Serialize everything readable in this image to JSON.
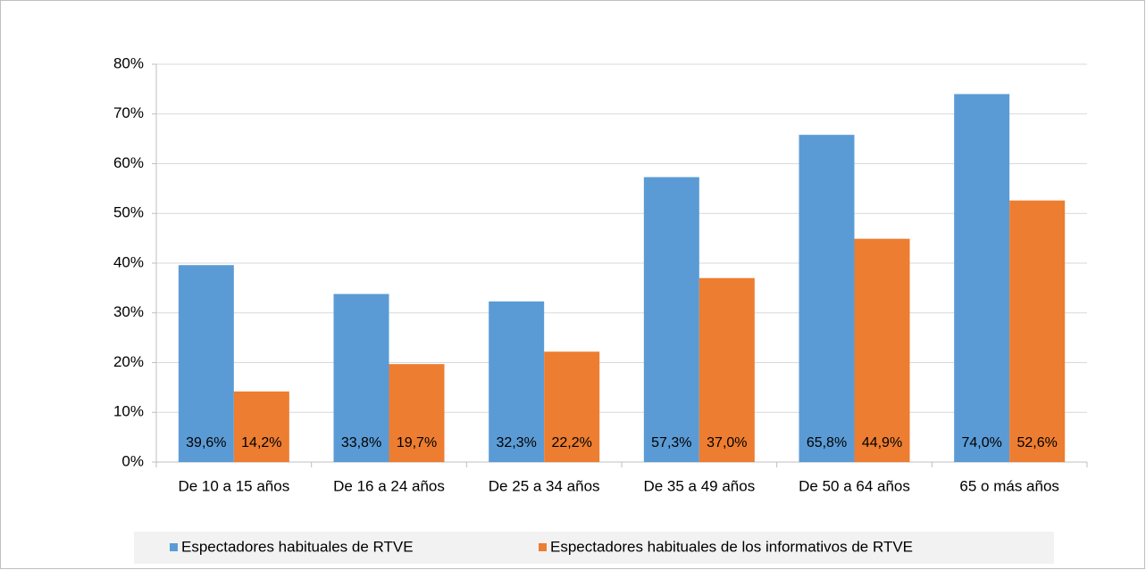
{
  "chart_data": {
    "type": "bar",
    "categories": [
      "De 10 a 15 años",
      "De 16 a 24 años",
      "De 25 a 34 años",
      "De 35 a 49 años",
      "De 50 a 64 años",
      "65 o más años"
    ],
    "series": [
      {
        "name": "Espectadores habituales de RTVE",
        "color": "#5b9bd5",
        "values": [
          39.6,
          33.8,
          32.3,
          57.3,
          65.8,
          74.0
        ],
        "value_labels": [
          "39,6%",
          "33,8%",
          "32,3%",
          "57,3%",
          "65,8%",
          "74,0%"
        ]
      },
      {
        "name": "Espectadores habituales de los informativos de RTVE",
        "color": "#ed7d31",
        "values": [
          14.2,
          19.7,
          22.2,
          37.0,
          44.9,
          52.6
        ],
        "value_labels": [
          "14,2%",
          "19,7%",
          "22,2%",
          "37,0%",
          "44,9%",
          "52,6%"
        ]
      }
    ],
    "ylim": [
      0,
      80
    ],
    "yticks": [
      {
        "value": 0,
        "label": "0%"
      },
      {
        "value": 10,
        "label": "10%"
      },
      {
        "value": 20,
        "label": "20%"
      },
      {
        "value": 30,
        "label": "30%"
      },
      {
        "value": 40,
        "label": "40%"
      },
      {
        "value": 50,
        "label": "50%"
      },
      {
        "value": 60,
        "label": "60%"
      },
      {
        "value": 70,
        "label": "70%"
      },
      {
        "value": 80,
        "label": "80%"
      }
    ],
    "grid": true,
    "legend": "bottom"
  }
}
